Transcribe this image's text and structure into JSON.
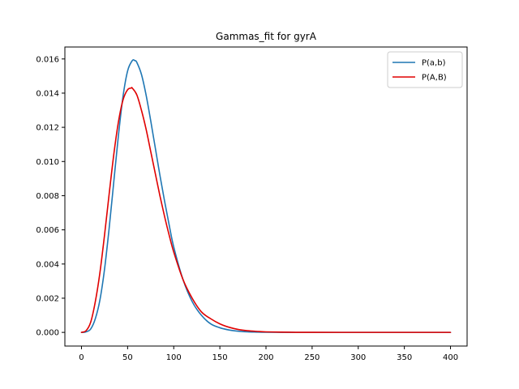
{
  "chart_data": {
    "type": "line",
    "title": "Gammas_fit for gyrA",
    "xlabel": "",
    "ylabel": "",
    "xlim": [
      -18,
      418
    ],
    "ylim": [
      -0.0008,
      0.0167
    ],
    "x_ticks": [
      0,
      50,
      100,
      150,
      200,
      250,
      300,
      350,
      400
    ],
    "x_tick_labels": [
      "0",
      "50",
      "100",
      "150",
      "200",
      "250",
      "300",
      "350",
      "400"
    ],
    "y_ticks": [
      0.0,
      0.002,
      0.004,
      0.006,
      0.008,
      0.01,
      0.012,
      0.014,
      0.016
    ],
    "y_tick_labels": [
      "0.000",
      "0.002",
      "0.004",
      "0.006",
      "0.008",
      "0.010",
      "0.012",
      "0.014",
      "0.016"
    ],
    "grid": false,
    "legend_position": "top-right",
    "series": [
      {
        "name": "P(a,b)",
        "color": "#1f77b4",
        "x": [
          0,
          5,
          10,
          15,
          20,
          25,
          30,
          35,
          40,
          45,
          50,
          55,
          58,
          60,
          65,
          70,
          75,
          80,
          85,
          90,
          95,
          100,
          110,
          120,
          130,
          140,
          150,
          160,
          170,
          180,
          190,
          200,
          225,
          250,
          300,
          350,
          400
        ],
        "y": [
          0.0,
          3e-05,
          0.0002,
          0.0008,
          0.0019,
          0.0037,
          0.0061,
          0.0088,
          0.0115,
          0.0138,
          0.0153,
          0.0159,
          0.0159,
          0.0158,
          0.0151,
          0.0139,
          0.0124,
          0.0108,
          0.0092,
          0.0077,
          0.0063,
          0.005,
          0.0031,
          0.0018,
          0.001,
          0.0005,
          0.00027,
          0.00014,
          7e-05,
          3e-05,
          1.5e-05,
          7e-06,
          1.5e-06,
          3e-07,
          0.0,
          0.0,
          0.0
        ]
      },
      {
        "name": "P(A,B)",
        "color": "#e00000",
        "x": [
          0,
          5,
          10,
          15,
          20,
          25,
          30,
          35,
          40,
          45,
          50,
          54,
          55,
          60,
          65,
          70,
          75,
          80,
          85,
          90,
          95,
          100,
          110,
          120,
          130,
          140,
          150,
          160,
          170,
          180,
          190,
          200,
          225,
          250,
          300,
          350,
          400
        ],
        "y": [
          0.0,
          0.0001,
          0.0006,
          0.0018,
          0.0035,
          0.0057,
          0.0081,
          0.0104,
          0.0123,
          0.0136,
          0.0142,
          0.0143,
          0.0143,
          0.0139,
          0.013,
          0.0119,
          0.0106,
          0.0093,
          0.008,
          0.0068,
          0.0057,
          0.0047,
          0.0031,
          0.002,
          0.0012,
          0.0008,
          0.0005,
          0.0003,
          0.00017,
          0.0001,
          6e-05,
          3e-05,
          8e-06,
          2e-06,
          0.0,
          0.0,
          0.0
        ]
      }
    ]
  }
}
